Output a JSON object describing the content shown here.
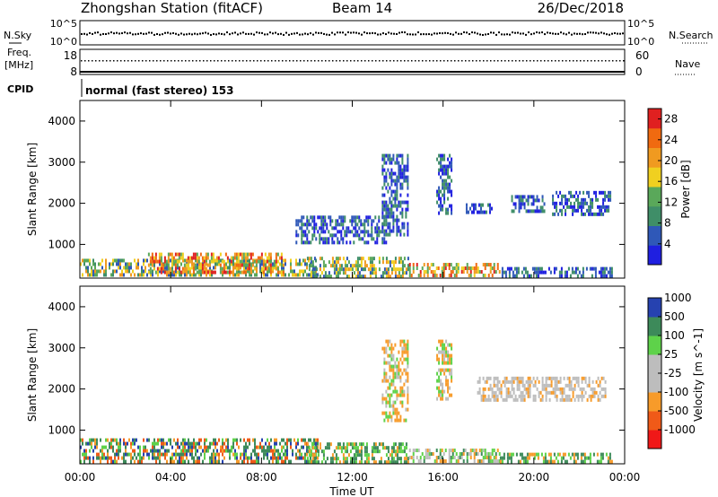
{
  "header": {
    "title": "Zhongshan Station (fitACF)",
    "beam": "Beam 14",
    "date": "26/Dec/2018"
  },
  "strips": {
    "nsky_label": "N.Sky",
    "nsky_ticks": [
      "10^5",
      "10^0"
    ],
    "nsearch_label": "N.Search",
    "nsearch_ticks": [
      "10^5",
      "10^0"
    ],
    "freq_label_line1": "Freq.",
    "freq_label_line2": "[MHz]",
    "freq_ticks": [
      "18",
      "8"
    ],
    "nave_label": "Nave",
    "nave_ticks": [
      "60",
      "0"
    ],
    "cpid_label": "CPID",
    "cpid_text": "normal (fast stereo) 153"
  },
  "colors": {
    "power": [
      "#1f1fe0",
      "#2f58b8",
      "#3f8e68",
      "#5aa85a",
      "#f0d020",
      "#f09a20",
      "#f06a10",
      "#e02020"
    ],
    "velocity": [
      "#f01818",
      "#f05a18",
      "#f79b2a",
      "#bdbdbd",
      "#bdbdbd",
      "#5ed24a",
      "#3d8a5a",
      "#2642b0"
    ]
  },
  "chart_data": [
    {
      "type": "heatmap",
      "title": "",
      "ylabel": "Slant Range [km]",
      "xlabel": "",
      "x_ticks": [
        "00:00",
        "04:00",
        "08:00",
        "12:00",
        "16:00",
        "20:00",
        "00:00"
      ],
      "y_ticks": [
        1000,
        2000,
        3000,
        4000
      ],
      "ylim": [
        180,
        4500
      ],
      "xlim_hours": [
        0,
        24
      ],
      "colorbar": {
        "label": "Power [dB]",
        "ticks": [
          4,
          8,
          12,
          16,
          20,
          24,
          28
        ],
        "range": [
          0,
          30
        ]
      },
      "echo_regions": [
        {
          "t0": 0.0,
          "t1": 10.5,
          "r0": 200,
          "r1": 650,
          "level": "mid"
        },
        {
          "t0": 3.0,
          "t1": 9.0,
          "r0": 250,
          "r1": 800,
          "level": "high"
        },
        {
          "t0": 10.0,
          "t1": 14.5,
          "r0": 200,
          "r1": 700,
          "level": "mid"
        },
        {
          "t0": 14.5,
          "t1": 18.5,
          "r0": 200,
          "r1": 550,
          "level": "high"
        },
        {
          "t0": 18.5,
          "t1": 23.5,
          "r0": 200,
          "r1": 450,
          "level": "low"
        },
        {
          "t0": 9.5,
          "t1": 13.5,
          "r0": 1000,
          "r1": 1700,
          "level": "low"
        },
        {
          "t0": 13.3,
          "t1": 14.5,
          "r0": 1200,
          "r1": 3200,
          "level": "low"
        },
        {
          "t0": 15.7,
          "t1": 16.4,
          "r0": 1700,
          "r1": 3200,
          "level": "low"
        },
        {
          "t0": 17.0,
          "t1": 18.2,
          "r0": 1700,
          "r1": 2000,
          "level": "low"
        },
        {
          "t0": 19.0,
          "t1": 20.5,
          "r0": 1800,
          "r1": 2200,
          "level": "low"
        },
        {
          "t0": 20.8,
          "t1": 23.4,
          "r0": 1700,
          "r1": 2300,
          "level": "low"
        }
      ]
    },
    {
      "type": "heatmap",
      "title": "",
      "ylabel": "Slant Range [km]",
      "xlabel": "Time UT",
      "x_ticks": [
        "00:00",
        "04:00",
        "08:00",
        "12:00",
        "16:00",
        "20:00",
        "00:00"
      ],
      "y_ticks": [
        1000,
        2000,
        3000,
        4000
      ],
      "ylim": [
        180,
        4500
      ],
      "xlim_hours": [
        0,
        24
      ],
      "colorbar": {
        "label": "Velocity [m s^-1]",
        "ticks": [
          -1000,
          -500,
          -100,
          -25,
          25,
          100,
          500,
          1000
        ]
      },
      "echo_regions": [
        {
          "t0": 0.0,
          "t1": 10.5,
          "r0": 200,
          "r1": 800,
          "level": "mixed-green-orange"
        },
        {
          "t0": 10.0,
          "t1": 14.5,
          "r0": 200,
          "r1": 700,
          "level": "green"
        },
        {
          "t0": 14.5,
          "t1": 18.5,
          "r0": 200,
          "r1": 550,
          "level": "green-grey"
        },
        {
          "t0": 18.5,
          "t1": 23.5,
          "r0": 200,
          "r1": 450,
          "level": "green"
        },
        {
          "t0": 13.3,
          "t1": 14.5,
          "r0": 1200,
          "r1": 3200,
          "level": "orange"
        },
        {
          "t0": 15.7,
          "t1": 16.4,
          "r0": 1700,
          "r1": 3200,
          "level": "orange"
        },
        {
          "t0": 17.5,
          "t1": 23.2,
          "r0": 1700,
          "r1": 2300,
          "level": "grey-orange"
        }
      ]
    }
  ]
}
